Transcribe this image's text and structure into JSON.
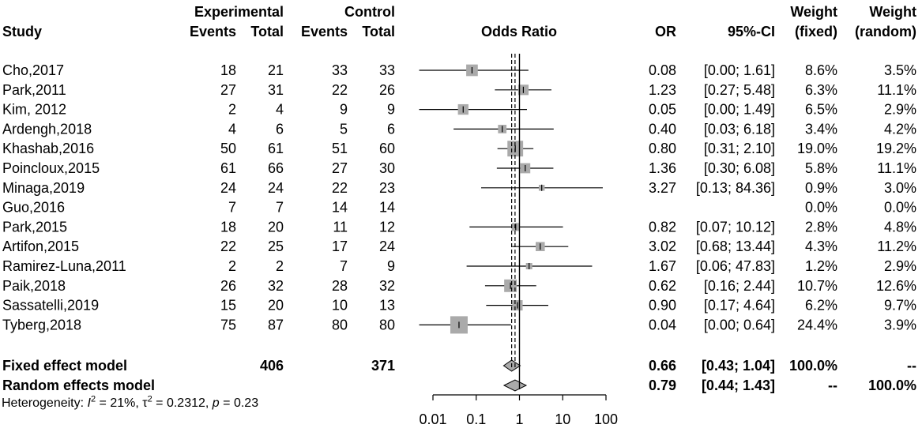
{
  "chart_data": {
    "type": "forest",
    "headers": {
      "study": "Study",
      "experimental": "Experimental",
      "control": "Control",
      "events": "Events",
      "total": "Total",
      "odds_ratio": "Odds Ratio",
      "or": "OR",
      "ci": "95%-CI",
      "weight": "Weight",
      "fixed": "(fixed)",
      "random": "(random)"
    },
    "x_axis": {
      "scale": "log",
      "ticks": [
        0.01,
        0.1,
        1,
        10,
        100
      ],
      "tick_labels": [
        "0.01",
        "0.1",
        "1",
        "10",
        "100"
      ],
      "range": [
        0.01,
        100
      ],
      "reference_line": 1
    },
    "studies": [
      {
        "name": "Cho,2017",
        "e_events": "18",
        "e_total": "21",
        "c_events": "33",
        "c_total": "33",
        "or": 0.08,
        "lo": 0.0,
        "hi": 1.61,
        "or_text": "0.08",
        "ci_text": "[0.00;  1.61]",
        "w_fixed": "8.6%",
        "w_random": "3.5%",
        "wf": 8.6
      },
      {
        "name": "Park,2011",
        "e_events": "27",
        "e_total": "31",
        "c_events": "22",
        "c_total": "26",
        "or": 1.23,
        "lo": 0.27,
        "hi": 5.48,
        "or_text": "1.23",
        "ci_text": "[0.27;  5.48]",
        "w_fixed": "6.3%",
        "w_random": "11.1%",
        "wf": 6.3
      },
      {
        "name": "Kim, 2012",
        "e_events": "2",
        "e_total": "4",
        "c_events": "9",
        "c_total": "9",
        "or": 0.05,
        "lo": 0.0,
        "hi": 1.49,
        "or_text": "0.05",
        "ci_text": "[0.00;  1.49]",
        "w_fixed": "6.5%",
        "w_random": "2.9%",
        "wf": 6.5
      },
      {
        "name": "Ardengh,2018",
        "e_events": "4",
        "e_total": "6",
        "c_events": "5",
        "c_total": "6",
        "or": 0.4,
        "lo": 0.03,
        "hi": 6.18,
        "or_text": "0.40",
        "ci_text": "[0.03;  6.18]",
        "w_fixed": "3.4%",
        "w_random": "4.2%",
        "wf": 3.4
      },
      {
        "name": "Khashab,2016",
        "e_events": "50",
        "e_total": "61",
        "c_events": "51",
        "c_total": "60",
        "or": 0.8,
        "lo": 0.31,
        "hi": 2.1,
        "or_text": "0.80",
        "ci_text": "[0.31;  2.10]",
        "w_fixed": "19.0%",
        "w_random": "19.2%",
        "wf": 19.0
      },
      {
        "name": "Poincloux,2015",
        "e_events": "61",
        "e_total": "66",
        "c_events": "27",
        "c_total": "30",
        "or": 1.36,
        "lo": 0.3,
        "hi": 6.08,
        "or_text": "1.36",
        "ci_text": "[0.30;  6.08]",
        "w_fixed": "5.8%",
        "w_random": "11.1%",
        "wf": 5.8
      },
      {
        "name": "Minaga,2019",
        "e_events": "24",
        "e_total": "24",
        "c_events": "22",
        "c_total": "23",
        "or": 3.27,
        "lo": 0.13,
        "hi": 84.36,
        "or_text": "3.27",
        "ci_text": "[0.13; 84.36]",
        "w_fixed": "0.9%",
        "w_random": "3.0%",
        "wf": 0.9
      },
      {
        "name": "Guo,2016",
        "e_events": "7",
        "e_total": "7",
        "c_events": "14",
        "c_total": "14",
        "or": null,
        "lo": null,
        "hi": null,
        "or_text": "",
        "ci_text": "",
        "w_fixed": "0.0%",
        "w_random": "0.0%",
        "wf": 0
      },
      {
        "name": "Park,2015",
        "e_events": "18",
        "e_total": "20",
        "c_events": "11",
        "c_total": "12",
        "or": 0.82,
        "lo": 0.07,
        "hi": 10.12,
        "or_text": "0.82",
        "ci_text": "[0.07; 10.12]",
        "w_fixed": "2.8%",
        "w_random": "4.8%",
        "wf": 2.8
      },
      {
        "name": "Artifon,2015",
        "e_events": "22",
        "e_total": "25",
        "c_events": "17",
        "c_total": "24",
        "or": 3.02,
        "lo": 0.68,
        "hi": 13.44,
        "or_text": "3.02",
        "ci_text": "[0.68; 13.44]",
        "w_fixed": "4.3%",
        "w_random": "11.2%",
        "wf": 4.3
      },
      {
        "name": "Ramirez-Luna,2011",
        "e_events": "2",
        "e_total": "2",
        "c_events": "7",
        "c_total": "9",
        "or": 1.67,
        "lo": 0.06,
        "hi": 47.83,
        "or_text": "1.67",
        "ci_text": "[0.06; 47.83]",
        "w_fixed": "1.2%",
        "w_random": "2.9%",
        "wf": 1.2
      },
      {
        "name": "Paik,2018",
        "e_events": "26",
        "e_total": "32",
        "c_events": "28",
        "c_total": "32",
        "or": 0.62,
        "lo": 0.16,
        "hi": 2.44,
        "or_text": "0.62",
        "ci_text": "[0.16;  2.44]",
        "w_fixed": "10.7%",
        "w_random": "12.6%",
        "wf": 10.7
      },
      {
        "name": "Sassatelli,2019",
        "e_events": "15",
        "e_total": "20",
        "c_events": "10",
        "c_total": "13",
        "or": 0.9,
        "lo": 0.17,
        "hi": 4.64,
        "or_text": "0.90",
        "ci_text": "[0.17;  4.64]",
        "w_fixed": "6.2%",
        "w_random": "9.7%",
        "wf": 6.2
      },
      {
        "name": "Tyberg,2018",
        "e_events": "75",
        "e_total": "87",
        "c_events": "80",
        "c_total": "80",
        "or": 0.04,
        "lo": 0.0,
        "hi": 0.64,
        "or_text": "0.04",
        "ci_text": "[0.00;  0.64]",
        "w_fixed": "24.4%",
        "w_random": "3.9%",
        "wf": 24.4
      }
    ],
    "summary": [
      {
        "name": "Fixed effect model",
        "e_total": "406",
        "c_total": "371",
        "or": 0.66,
        "lo": 0.43,
        "hi": 1.04,
        "or_text": "0.66",
        "ci_text": "[0.43;  1.04]",
        "w_fixed": "100.0%",
        "w_random": "--"
      },
      {
        "name": "Random effects model",
        "e_total": "",
        "c_total": "",
        "or": 0.79,
        "lo": 0.44,
        "hi": 1.43,
        "or_text": "0.79",
        "ci_text": "[0.44;  1.43]",
        "w_fixed": "--",
        "w_random": "100.0%"
      }
    ],
    "heterogeneity": {
      "label": "Heterogeneity:",
      "i2_symbol": "I",
      "i2_exp": "2",
      "i2_value": "= 21%,",
      "tau_symbol": "τ",
      "tau_exp": "2",
      "tau_value": "= 0.2312,",
      "p_symbol": "p",
      "p_value": "= 0.23"
    },
    "colors": {
      "box": "#aaaaaa",
      "diamond": "#aaaaaa",
      "line": "#000000"
    }
  }
}
